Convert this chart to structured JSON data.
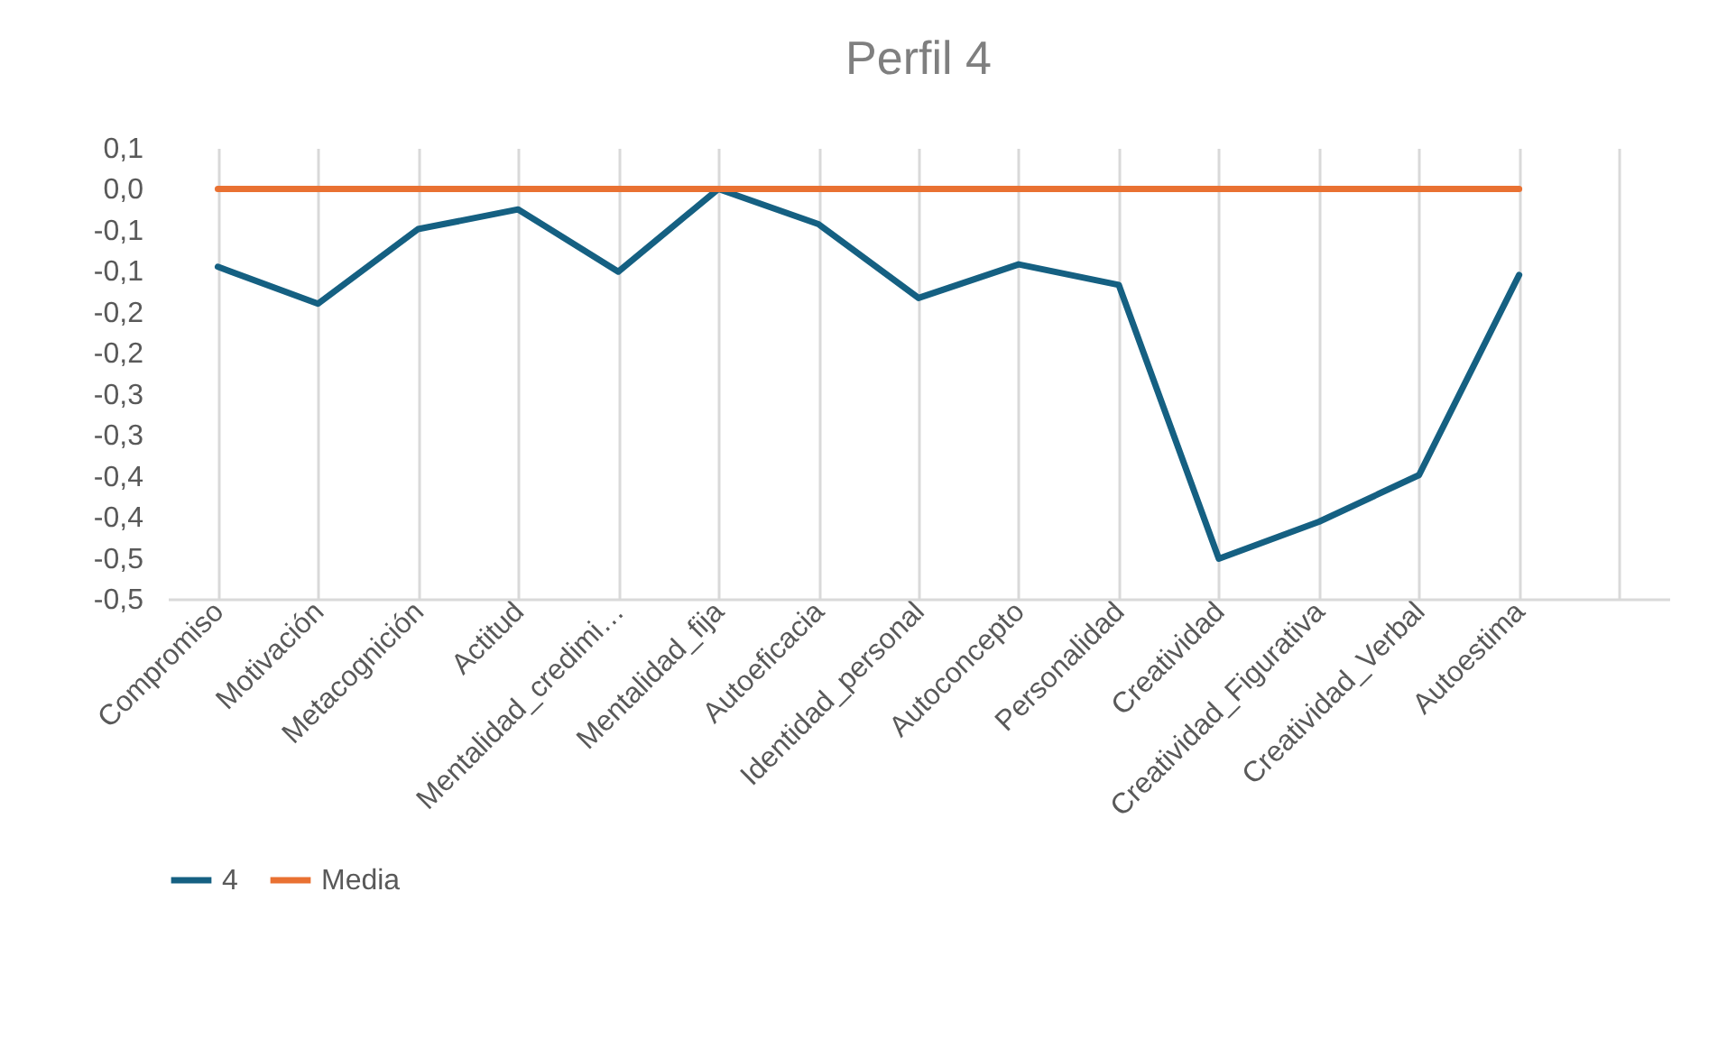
{
  "chart_data": {
    "type": "line",
    "title": "Perfil 4",
    "categories": [
      "Compromiso",
      "Motivación",
      "Metacognición",
      "Actitud",
      "Mentalidad_credimi…",
      "Mentalidad_fija",
      "Autoeficacia",
      "Identidad_personal",
      "Autoconcepto",
      "Personalidad",
      "Creatividad",
      "Creatividad_Figurativa",
      "Creatividad_Verbal",
      "Autoestima",
      null
    ],
    "series": [
      {
        "name": "4",
        "color": "#156082",
        "values": [
          -0.095,
          -0.14,
          -0.049,
          -0.025,
          -0.101,
          0,
          -0.043,
          -0.133,
          -0.092,
          -0.117,
          -0.451,
          -0.406,
          -0.349,
          -0.105,
          null
        ]
      },
      {
        "name": "Media",
        "color": "#e97132",
        "values": [
          0,
          0,
          0,
          0,
          0,
          0,
          0,
          0,
          0,
          0,
          0,
          0,
          0,
          0,
          null
        ]
      }
    ],
    "ylim": [
      -0.5,
      0.05
    ],
    "yticks": [
      {
        "value": 0.05,
        "label": "0,1"
      },
      {
        "value": 0,
        "label": "0,0"
      },
      {
        "value": -0.05,
        "label": "-0,1"
      },
      {
        "value": -0.1,
        "label": "-0,1"
      },
      {
        "value": -0.15,
        "label": "-0,2"
      },
      {
        "value": -0.2,
        "label": "-0,2"
      },
      {
        "value": -0.25,
        "label": "-0,3"
      },
      {
        "value": -0.3,
        "label": "-0,3"
      },
      {
        "value": -0.35,
        "label": "-0,4"
      },
      {
        "value": -0.4,
        "label": "-0,4"
      },
      {
        "value": -0.45,
        "label": "-0,5"
      },
      {
        "value": -0.5,
        "label": "-0,5"
      }
    ],
    "grid": "x",
    "legend": "bottom",
    "marker": "none",
    "line_style": "solid"
  }
}
